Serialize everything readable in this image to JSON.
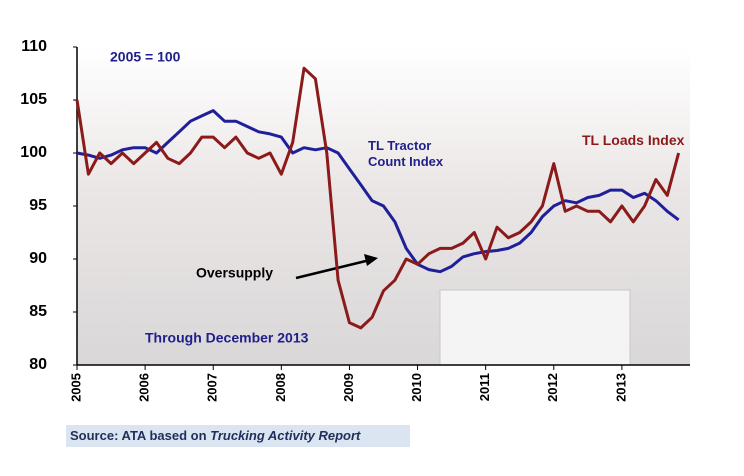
{
  "chart_data": {
    "type": "line",
    "annotations": {
      "base": "2005 = 100",
      "oversupply": "Oversupply",
      "through": "Through December 2013"
    },
    "source": {
      "prefix": "Source: ATA based on ",
      "report": "Trucking Activity Report"
    },
    "x": [
      2005,
      2005.167,
      2005.333,
      2005.5,
      2005.667,
      2005.833,
      2006,
      2006.167,
      2006.333,
      2006.5,
      2006.667,
      2006.833,
      2007,
      2007.167,
      2007.333,
      2007.5,
      2007.667,
      2007.833,
      2008,
      2008.167,
      2008.333,
      2008.5,
      2008.667,
      2008.833,
      2009,
      2009.167,
      2009.333,
      2009.5,
      2009.667,
      2009.833,
      2010,
      2010.167,
      2010.333,
      2010.5,
      2010.667,
      2010.833,
      2011,
      2011.167,
      2011.333,
      2011.5,
      2011.667,
      2011.833,
      2012,
      2012.167,
      2012.333,
      2012.5,
      2012.667,
      2012.833,
      2013,
      2013.167,
      2013.333,
      2013.5,
      2013.667,
      2013.833
    ],
    "series": [
      {
        "name": "TL Tractor Count Index",
        "color": "#1f1f9a",
        "values": [
          100,
          99.8,
          99.5,
          99.8,
          100.3,
          100.5,
          100.5,
          100,
          101,
          102,
          103,
          103.5,
          104,
          103,
          103,
          102.5,
          102,
          101.8,
          101.5,
          100,
          100.5,
          100.3,
          100.5,
          100,
          98.5,
          97,
          95.5,
          95,
          93.5,
          91,
          89.5,
          89,
          88.8,
          89.3,
          90.2,
          90.5,
          90.7,
          90.8,
          91,
          91.5,
          92.5,
          94,
          95,
          95.5,
          95.3,
          95.8,
          96,
          96.5,
          96.5,
          95.8,
          96.2,
          95.5,
          94.5,
          93.7
        ]
      },
      {
        "name": "TL Loads Index",
        "color": "#8b1a1a",
        "values": [
          105,
          98,
          100,
          99,
          100,
          99,
          100,
          101,
          99.5,
          99,
          100,
          101.5,
          101.5,
          100.5,
          101.5,
          100,
          99.5,
          100,
          98,
          101,
          108,
          107,
          100,
          88,
          84,
          83.5,
          84.5,
          87,
          88,
          90,
          89.5,
          90.5,
          91,
          91,
          91.5,
          92.5,
          90,
          93,
          92,
          92.5,
          93.5,
          95,
          99,
          94.5,
          95,
          94.5,
          94.5,
          93.5,
          95,
          93.5,
          95,
          97.5,
          96,
          100
        ]
      }
    ],
    "xlim": [
      2005,
      2014
    ],
    "xticks": [
      2005,
      2006,
      2007,
      2008,
      2009,
      2010,
      2011,
      2012,
      2013
    ],
    "ylim": [
      80,
      110
    ],
    "yticks": [
      80,
      85,
      90,
      95,
      100,
      105,
      110
    ],
    "grid": false
  }
}
